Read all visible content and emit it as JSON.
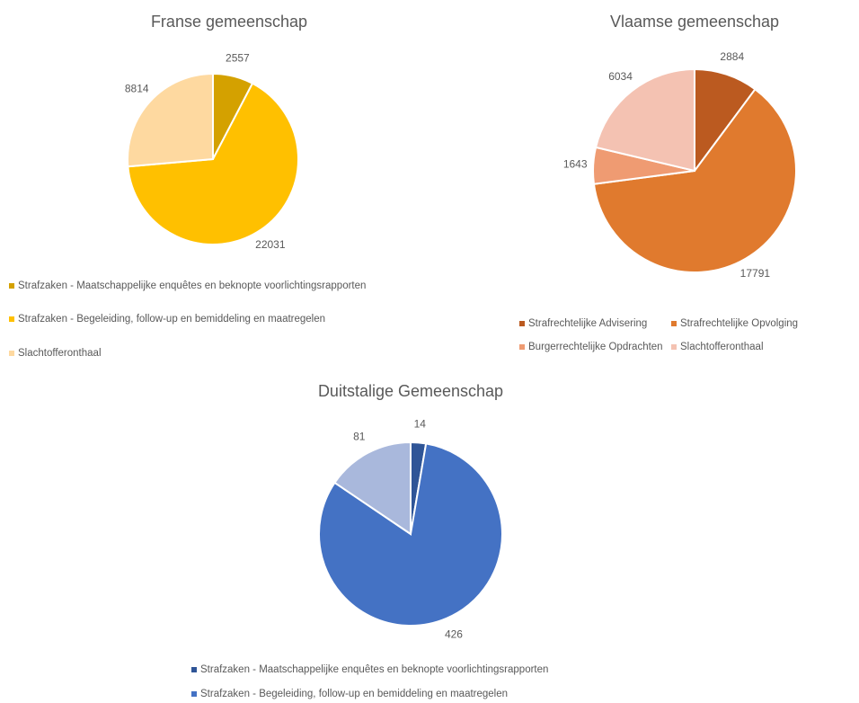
{
  "chart_data": [
    {
      "type": "pie",
      "title": "Franse gemeenschap",
      "categories": [
        "Strafzaken - Maatschappelijke enquêtes en beknopte voorlichtingsrapporten",
        "Strafzaken - Begeleiding, follow-up en bemiddeling en maatregelen",
        "Slachtofferonthaal"
      ],
      "values": [
        2557,
        22031,
        8814
      ],
      "colors": [
        "#d4a100",
        "#ffc000",
        "#fed9a0"
      ]
    },
    {
      "type": "pie",
      "title": "Vlaamse gemeenschap",
      "categories": [
        "Strafrechtelijke Advisering",
        "Strafrechtelijke Opvolging",
        "Burgerrechtelijke Opdrachten",
        "Slachtofferonthaal"
      ],
      "values": [
        2884,
        17791,
        1643,
        6034
      ],
      "colors": [
        "#bb5a20",
        "#e07a2e",
        "#ef9b72",
        "#f4c2b2"
      ]
    },
    {
      "type": "pie",
      "title": "Duitstalige Gemeenschap",
      "categories": [
        "Strafzaken - Maatschappelijke enquêtes en beknopte voorlichtingsrapporten",
        "Strafzaken - Begeleiding, follow-up en bemiddeling en maatregelen",
        null
      ],
      "values": [
        14,
        426,
        81
      ],
      "colors": [
        "#2f5597",
        "#4472c4",
        "#a9b8dc"
      ]
    }
  ]
}
